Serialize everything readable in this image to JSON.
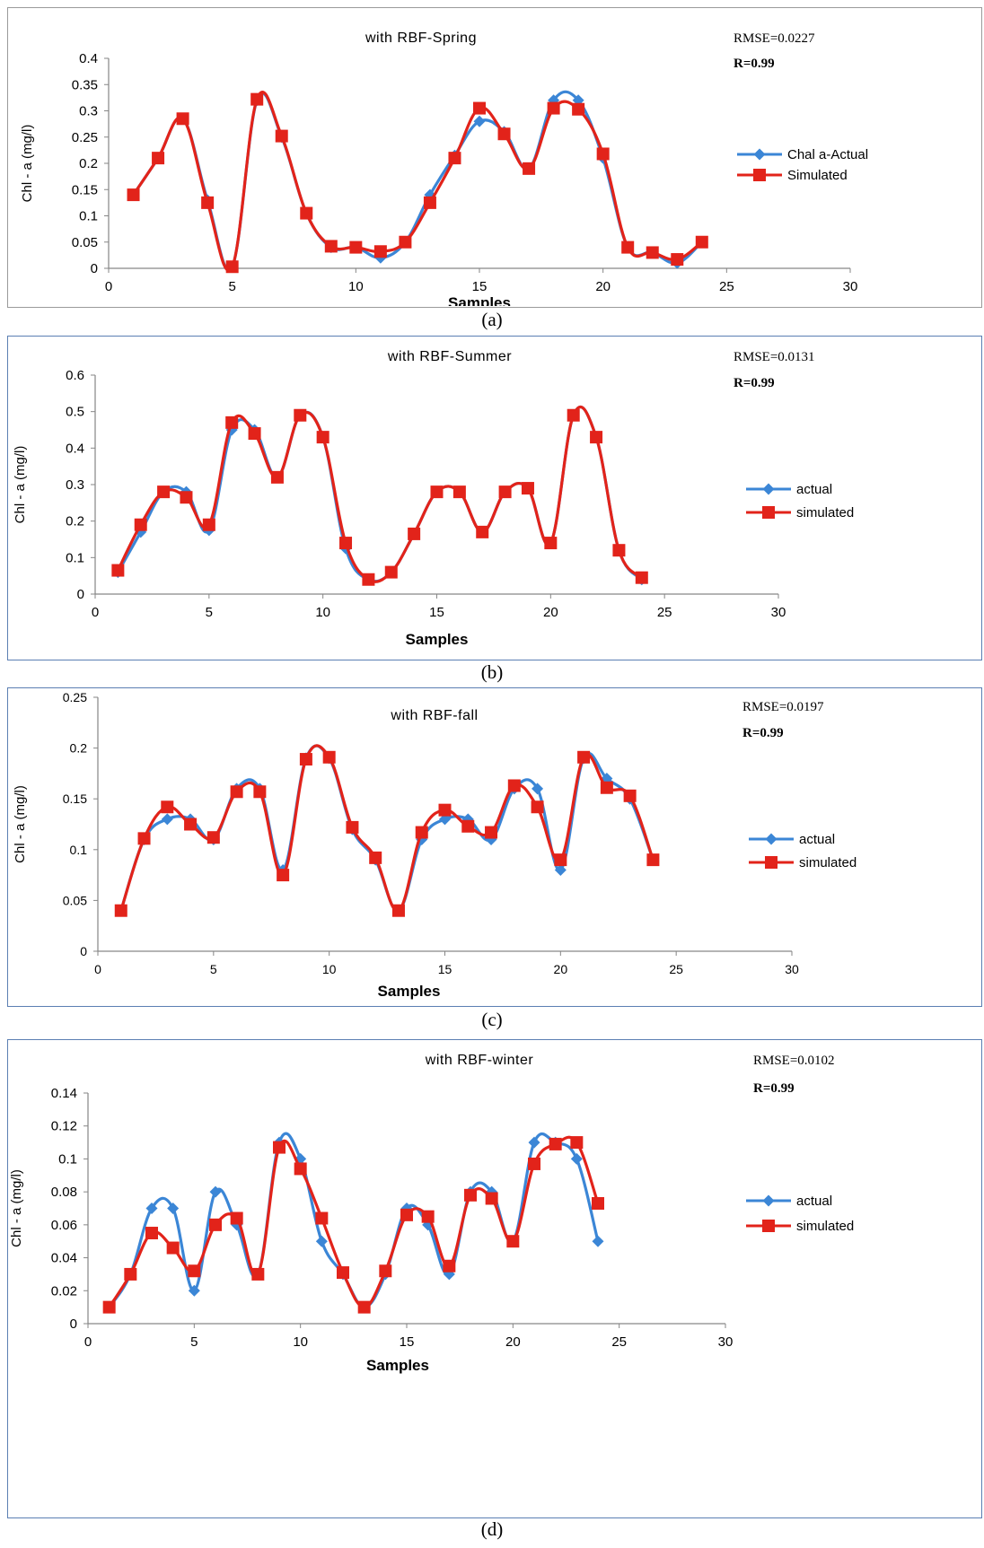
{
  "chart_data": [
    {
      "type": "line",
      "title": "with RBF-Spring",
      "xlabel": "Samples",
      "ylabel": "Chl - a (mg/l)",
      "xlim": [
        0,
        30
      ],
      "ylim": [
        0,
        0.4
      ],
      "xticks": [
        "0",
        "5",
        "10",
        "15",
        "20",
        "25",
        "30"
      ],
      "yticks": [
        "0",
        "0.05",
        "0.1",
        "0.15",
        "0.2",
        "0.25",
        "0.3",
        "0.35",
        "0.4"
      ],
      "x": [
        1,
        2,
        3,
        4,
        5,
        6,
        7,
        8,
        9,
        10,
        11,
        12,
        13,
        14,
        15,
        16,
        17,
        18,
        19,
        20,
        21,
        22,
        23,
        24
      ],
      "series": [
        {
          "name": "Chal a-Actual",
          "color": "#3b86d6",
          "marker": "diamond",
          "values": [
            0.14,
            0.21,
            0.285,
            0.13,
            0.003,
            0.32,
            0.25,
            0.105,
            0.04,
            0.04,
            0.02,
            0.05,
            0.14,
            0.215,
            0.28,
            0.26,
            0.19,
            0.32,
            0.32,
            0.21,
            0.04,
            0.03,
            0.01,
            0.05
          ]
        },
        {
          "name": "Simulated",
          "color": "#e2231a",
          "marker": "square",
          "values": [
            0.14,
            0.21,
            0.285,
            0.125,
            0.003,
            0.322,
            0.252,
            0.105,
            0.042,
            0.04,
            0.032,
            0.05,
            0.125,
            0.21,
            0.305,
            0.256,
            0.19,
            0.305,
            0.303,
            0.218,
            0.04,
            0.03,
            0.017,
            0.05
          ]
        }
      ],
      "rmse": "RMSE=0.0227",
      "r": "R=0.99",
      "caption": "(a)"
    },
    {
      "type": "line",
      "title": "with RBF-Summer",
      "xlabel": "Samples",
      "ylabel": "Chl - a (mg/l)",
      "xlim": [
        0,
        30
      ],
      "ylim": [
        0,
        0.6
      ],
      "xticks": [
        "0",
        "5",
        "10",
        "15",
        "20",
        "25",
        "30"
      ],
      "yticks": [
        "0",
        "0.1",
        "0.2",
        "0.3",
        "0.4",
        "0.5",
        "0.6"
      ],
      "x": [
        1,
        2,
        3,
        4,
        5,
        6,
        7,
        8,
        9,
        10,
        11,
        12,
        13,
        14,
        15,
        16,
        17,
        18,
        19,
        20,
        21,
        22,
        23,
        24
      ],
      "series": [
        {
          "name": "actual",
          "color": "#3b86d6",
          "marker": "diamond",
          "values": [
            0.06,
            0.17,
            0.28,
            0.28,
            0.175,
            0.45,
            0.45,
            0.32,
            0.49,
            0.43,
            0.125,
            0.04,
            0.06,
            0.165,
            0.28,
            0.28,
            0.17,
            0.28,
            0.29,
            0.14,
            0.49,
            0.43,
            0.12,
            0.04
          ]
        },
        {
          "name": "simulated",
          "color": "#e2231a",
          "marker": "square",
          "values": [
            0.065,
            0.19,
            0.28,
            0.265,
            0.19,
            0.47,
            0.44,
            0.32,
            0.49,
            0.43,
            0.14,
            0.04,
            0.06,
            0.165,
            0.28,
            0.28,
            0.17,
            0.28,
            0.29,
            0.14,
            0.49,
            0.43,
            0.12,
            0.045
          ]
        }
      ],
      "rmse": "RMSE=0.0131",
      "r": "R=0.99",
      "caption": "(b)"
    },
    {
      "type": "line",
      "title": "with RBF-fall",
      "xlabel": "Samples",
      "ylabel": "Chl - a (mg/l)",
      "xlim": [
        0,
        30
      ],
      "ylim": [
        0,
        0.25
      ],
      "xticks": [
        "0",
        "5",
        "10",
        "15",
        "20",
        "25",
        "30"
      ],
      "yticks": [
        "0",
        "0.05",
        "0.1",
        "0.15",
        "0.2",
        "0.25"
      ],
      "x": [
        1,
        2,
        3,
        4,
        5,
        6,
        7,
        8,
        9,
        10,
        11,
        12,
        13,
        14,
        15,
        16,
        17,
        18,
        19,
        20,
        21,
        22,
        23,
        24
      ],
      "series": [
        {
          "name": "actual",
          "color": "#3b86d6",
          "marker": "diamond",
          "values": [
            0.04,
            0.11,
            0.13,
            0.13,
            0.11,
            0.16,
            0.16,
            0.08,
            0.19,
            0.19,
            0.12,
            0.09,
            0.04,
            0.11,
            0.13,
            0.13,
            0.11,
            0.16,
            0.16,
            0.08,
            0.19,
            0.17,
            0.15,
            0.09
          ]
        },
        {
          "name": "simulated",
          "color": "#e2231a",
          "marker": "square",
          "values": [
            0.04,
            0.111,
            0.142,
            0.125,
            0.112,
            0.157,
            0.157,
            0.075,
            0.189,
            0.191,
            0.122,
            0.092,
            0.04,
            0.117,
            0.139,
            0.123,
            0.117,
            0.163,
            0.142,
            0.09,
            0.191,
            0.161,
            0.153,
            0.09
          ]
        }
      ],
      "rmse": "RMSE=0.0197",
      "r": "R=0.99",
      "caption": "(c)"
    },
    {
      "type": "line",
      "title": "with RBF-winter",
      "xlabel": "Samples",
      "ylabel": "Chl - a (mg/l)",
      "xlim": [
        0,
        30
      ],
      "ylim": [
        0,
        0.14
      ],
      "xticks": [
        "0",
        "5",
        "10",
        "15",
        "20",
        "25",
        "30"
      ],
      "yticks": [
        "0",
        "0.02",
        "0.04",
        "0.06",
        "0.08",
        "0.1",
        "0.12",
        "0.14"
      ],
      "x": [
        1,
        2,
        3,
        4,
        5,
        6,
        7,
        8,
        9,
        10,
        11,
        12,
        13,
        14,
        15,
        16,
        17,
        18,
        19,
        20,
        21,
        22,
        23,
        24
      ],
      "series": [
        {
          "name": "actual",
          "color": "#3b86d6",
          "marker": "diamond",
          "values": [
            0.01,
            0.03,
            0.07,
            0.07,
            0.02,
            0.08,
            0.06,
            0.03,
            0.11,
            0.1,
            0.05,
            0.03,
            0.01,
            0.03,
            0.07,
            0.06,
            0.03,
            0.08,
            0.08,
            0.05,
            0.11,
            0.11,
            0.1,
            0.05
          ]
        },
        {
          "name": "simulated",
          "color": "#e2231a",
          "marker": "square",
          "values": [
            0.01,
            0.03,
            0.055,
            0.046,
            0.032,
            0.06,
            0.064,
            0.03,
            0.107,
            0.094,
            0.064,
            0.031,
            0.01,
            0.032,
            0.066,
            0.065,
            0.035,
            0.078,
            0.076,
            0.05,
            0.097,
            0.109,
            0.11,
            0.073
          ]
        }
      ],
      "rmse": "RMSE=0.0102",
      "r": "R=0.99",
      "caption": "(d)"
    }
  ]
}
